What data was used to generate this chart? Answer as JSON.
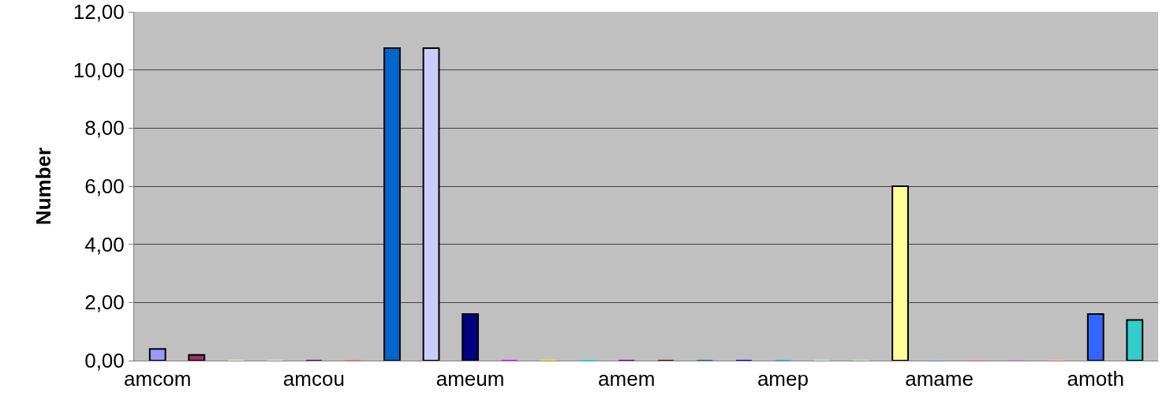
{
  "chart_data": {
    "type": "bar",
    "ylabel": "Number",
    "categories": [
      "amcom",
      null,
      null,
      null,
      "amcou",
      null,
      null,
      null,
      "ameum",
      null,
      null,
      null,
      "amem",
      null,
      null,
      null,
      "amep",
      null,
      null,
      null,
      "amame",
      null,
      null,
      null,
      "amoth",
      null
    ],
    "values": [
      0.4,
      0.2,
      0,
      0,
      0,
      0,
      10.75,
      10.75,
      1.6,
      0,
      0,
      0,
      0,
      0,
      0,
      0,
      0,
      0,
      0,
      6.0,
      0,
      0,
      0,
      0,
      1.6,
      1.4
    ],
    "colors": [
      "#9999ff",
      "#993366",
      "#ffffcc",
      "#ccffff",
      "#660066",
      "#ff8080",
      "#0066cc",
      "#ccccff",
      "#000080",
      "#ff00ff",
      "#ffff00",
      "#00ffff",
      "#800080",
      "#800000",
      "#008080",
      "#0000ff",
      "#00ccff",
      "#ccffff",
      "#ccffcc",
      "#ffff99",
      "#99ccff",
      "#ff99cc",
      "#cc99ff",
      "#ffcc99",
      "#3366ff",
      "#33cccc"
    ],
    "ylim": [
      0,
      12
    ],
    "yticks": [
      {
        "value": 0,
        "label": "0,00"
      },
      {
        "value": 2,
        "label": "2,00"
      },
      {
        "value": 4,
        "label": "4,00"
      },
      {
        "value": 6,
        "label": "6,00"
      },
      {
        "value": 8,
        "label": "8,00"
      },
      {
        "value": 10,
        "label": "10,00"
      },
      {
        "value": 12,
        "label": "12,00"
      }
    ],
    "grid": "y"
  }
}
